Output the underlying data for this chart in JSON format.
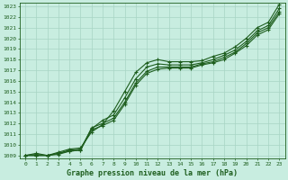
{
  "title": "Graphe pression niveau de la mer (hPa)",
  "bg_color": "#c8ede0",
  "grid_color": "#a8d4c4",
  "line_color": "#1e5e1e",
  "xlim": [
    -0.5,
    23.5
  ],
  "ylim": [
    1008.7,
    1023.3
  ],
  "xticks": [
    0,
    1,
    2,
    3,
    4,
    5,
    6,
    7,
    8,
    9,
    10,
    11,
    12,
    13,
    14,
    15,
    16,
    17,
    18,
    19,
    20,
    21,
    22,
    23
  ],
  "yticks": [
    1009,
    1010,
    1011,
    1012,
    1013,
    1014,
    1015,
    1016,
    1017,
    1018,
    1019,
    1020,
    1021,
    1022,
    1023
  ],
  "series": [
    [
      1009.0,
      1009.2,
      1009.0,
      1009.3,
      1009.6,
      1009.7,
      1011.2,
      1011.9,
      1013.2,
      1015.0,
      1016.8,
      1017.7,
      1018.0,
      1017.8,
      1017.8,
      1017.8,
      1017.9,
      1018.3,
      1018.6,
      1019.2,
      1020.0,
      1021.0,
      1021.5,
      1023.2
    ],
    [
      1009.0,
      1009.1,
      1009.0,
      1009.2,
      1009.5,
      1009.6,
      1011.5,
      1012.3,
      1012.8,
      1014.4,
      1016.2,
      1017.3,
      1017.6,
      1017.5,
      1017.5,
      1017.5,
      1017.7,
      1018.0,
      1018.4,
      1018.9,
      1019.7,
      1020.7,
      1021.2,
      1022.8
    ],
    [
      1009.0,
      1009.0,
      1009.0,
      1009.2,
      1009.4,
      1009.5,
      1011.6,
      1012.0,
      1012.5,
      1014.0,
      1015.8,
      1016.9,
      1017.3,
      1017.3,
      1017.3,
      1017.3,
      1017.6,
      1017.8,
      1018.2,
      1018.7,
      1019.5,
      1020.5,
      1021.0,
      1022.5
    ],
    [
      1009.0,
      1009.0,
      1009.0,
      1009.1,
      1009.4,
      1009.5,
      1011.4,
      1011.8,
      1012.3,
      1013.8,
      1015.6,
      1016.7,
      1017.1,
      1017.2,
      1017.2,
      1017.2,
      1017.5,
      1017.7,
      1018.0,
      1018.6,
      1019.3,
      1020.3,
      1020.8,
      1022.3
    ]
  ]
}
